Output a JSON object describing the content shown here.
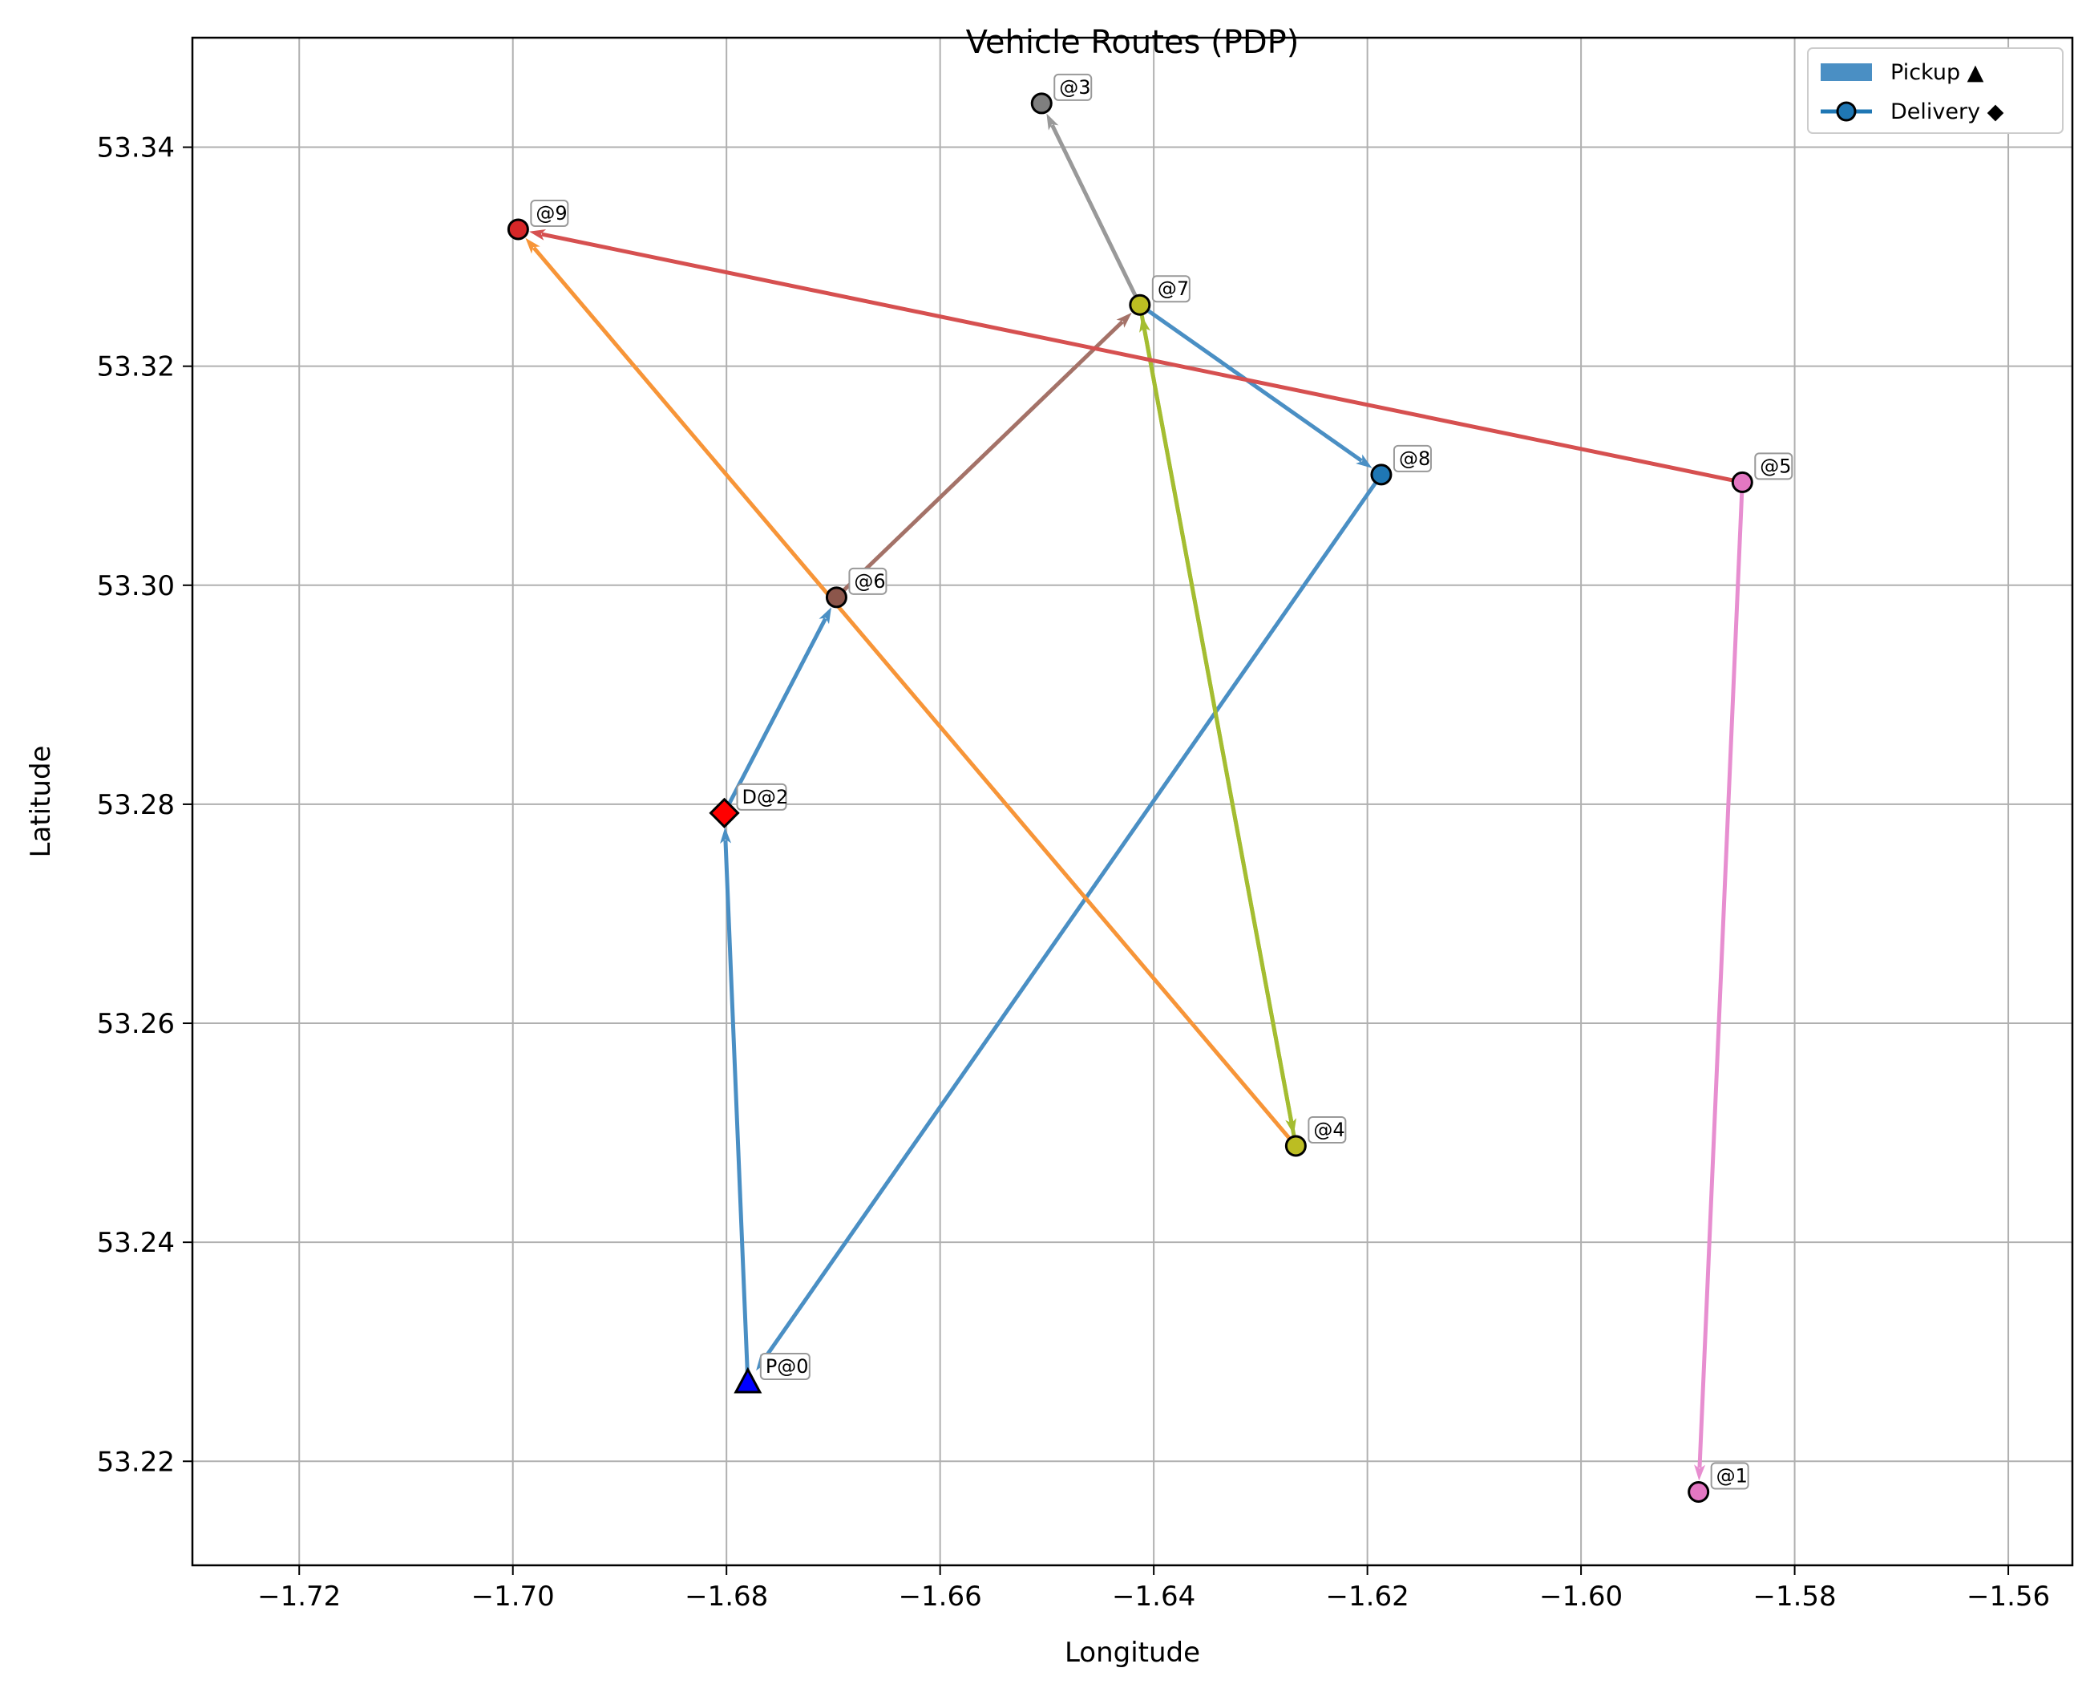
{
  "chart_data": {
    "type": "line",
    "title": "Vehicle Routes (PDP)",
    "xlabel": "Longitude",
    "ylabel": "Latitude",
    "xlim": [
      -1.73,
      -1.554
    ],
    "ylim": [
      53.2105,
      53.35
    ],
    "x_ticks": [
      -1.72,
      -1.7,
      -1.68,
      -1.66,
      -1.64,
      -1.62,
      -1.6,
      -1.58,
      -1.56
    ],
    "x_tick_labels": [
      "−1.72",
      "−1.70",
      "−1.68",
      "−1.66",
      "−1.64",
      "−1.62",
      "−1.60",
      "−1.58",
      "−1.56"
    ],
    "y_ticks": [
      53.22,
      53.24,
      53.26,
      53.28,
      53.3,
      53.32,
      53.34
    ],
    "y_tick_labels": [
      "53.22",
      "53.24",
      "53.26",
      "53.28",
      "53.30",
      "53.32",
      "53.34"
    ],
    "grid": true,
    "legend_position": "top-right",
    "legend": [
      {
        "label": "Pickup ▲",
        "kind": "patch",
        "color": "#4a8fc4"
      },
      {
        "label": "Delivery ◆",
        "kind": "line-marker",
        "color": "#1f77b4"
      }
    ],
    "points": [
      {
        "label": "P@0",
        "x": -1.678,
        "y": 53.2272,
        "marker": "triangle",
        "color": "#0000ff"
      },
      {
        "label": "@1",
        "x": -1.589,
        "y": 53.2172,
        "marker": "circle",
        "color": "#e377c2"
      },
      {
        "label": "D@2",
        "x": -1.6802,
        "y": 53.2792,
        "marker": "diamond",
        "color": "#ff0000"
      },
      {
        "label": "@3",
        "x": -1.6505,
        "y": 53.344,
        "marker": "circle",
        "color": "#7f7f7f"
      },
      {
        "label": "@4",
        "x": -1.6267,
        "y": 53.2488,
        "marker": "circle",
        "color": "#bcbd22"
      },
      {
        "label": "@5",
        "x": -1.5849,
        "y": 53.3094,
        "marker": "circle",
        "color": "#e377c2"
      },
      {
        "label": "@6",
        "x": -1.6697,
        "y": 53.2989,
        "marker": "circle",
        "color": "#8c564b"
      },
      {
        "label": "@7",
        "x": -1.6413,
        "y": 53.3256,
        "marker": "circle",
        "color": "#bcbd22"
      },
      {
        "label": "@8",
        "x": -1.6187,
        "y": 53.3101,
        "marker": "circle",
        "color": "#1f77b4"
      },
      {
        "label": "@9",
        "x": -1.6995,
        "y": 53.3325,
        "marker": "circle",
        "color": "#d62728"
      }
    ],
    "segments": [
      {
        "from": 0,
        "to": 2,
        "color": "#4a8fc4"
      },
      {
        "from": 2,
        "to": 6,
        "color": "#4a8fc4"
      },
      {
        "from": 6,
        "to": 7,
        "color": "#a47268"
      },
      {
        "from": 7,
        "to": 3,
        "color": "#999999"
      },
      {
        "from": 7,
        "to": 8,
        "color": "#4a8fc4"
      },
      {
        "from": 8,
        "to": 0,
        "color": "#4a8fc4"
      },
      {
        "from": 7,
        "to": 4,
        "color": "#a4bd31"
      },
      {
        "from": 4,
        "to": 7,
        "color": "#a4bd31"
      },
      {
        "from": 4,
        "to": 9,
        "color": "#f79538"
      },
      {
        "from": 5,
        "to": 9,
        "color": "#d65050"
      },
      {
        "from": 5,
        "to": 1,
        "color": "#e78ed0"
      }
    ]
  }
}
